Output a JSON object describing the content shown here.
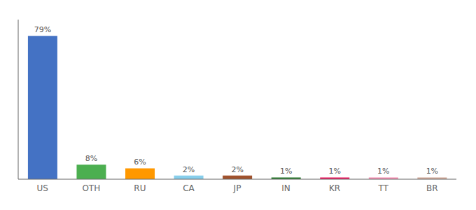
{
  "chart_data": {
    "type": "bar",
    "categories": [
      "US",
      "OTH",
      "RU",
      "CA",
      "JP",
      "IN",
      "KR",
      "TT",
      "BR"
    ],
    "values": [
      79,
      8,
      6,
      2,
      2,
      1,
      1,
      1,
      1
    ],
    "value_labels": [
      "79%",
      "8%",
      "6%",
      "2%",
      "2%",
      "1%",
      "1%",
      "1%",
      "1%"
    ],
    "colors": [
      "#4472c4",
      "#4caf50",
      "#ff9800",
      "#87ceeb",
      "#a0522d",
      "#2e7d32",
      "#e91e63",
      "#f48fb1",
      "#d2a99a"
    ],
    "ylim": [
      0,
      88
    ],
    "data_labels": true,
    "tick_labels": "x",
    "grid": false
  }
}
